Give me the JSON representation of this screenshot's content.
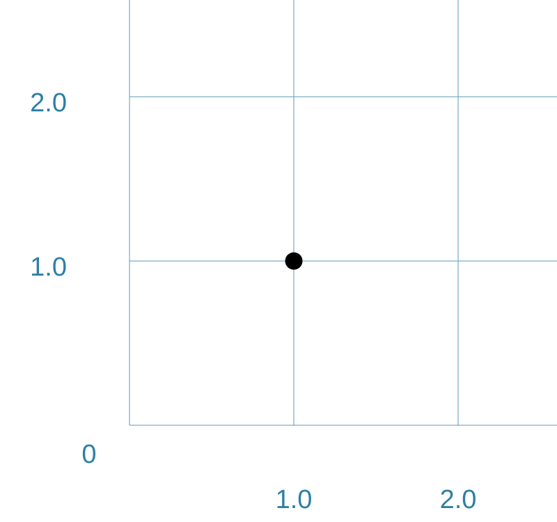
{
  "chart_data": {
    "type": "scatter",
    "title": "",
    "xlabel": "",
    "ylabel": "",
    "xlim": [
      0,
      3
    ],
    "ylim": [
      0,
      2.5
    ],
    "grid": true,
    "x_ticks": [
      1.0,
      2.0
    ],
    "y_ticks": [
      1.0,
      2.0
    ],
    "x_tick_labels": [
      "1.0",
      "2.0"
    ],
    "y_tick_labels": [
      "1.0",
      "2.0"
    ],
    "origin_label": "0",
    "series": [
      {
        "points": [
          {
            "x": 1.0,
            "y": 1.0
          }
        ]
      }
    ]
  },
  "colors": {
    "grid": "#5b9ab4",
    "axis_text": "#2e7fa5",
    "point": "#000000",
    "background": "#ffffff"
  }
}
